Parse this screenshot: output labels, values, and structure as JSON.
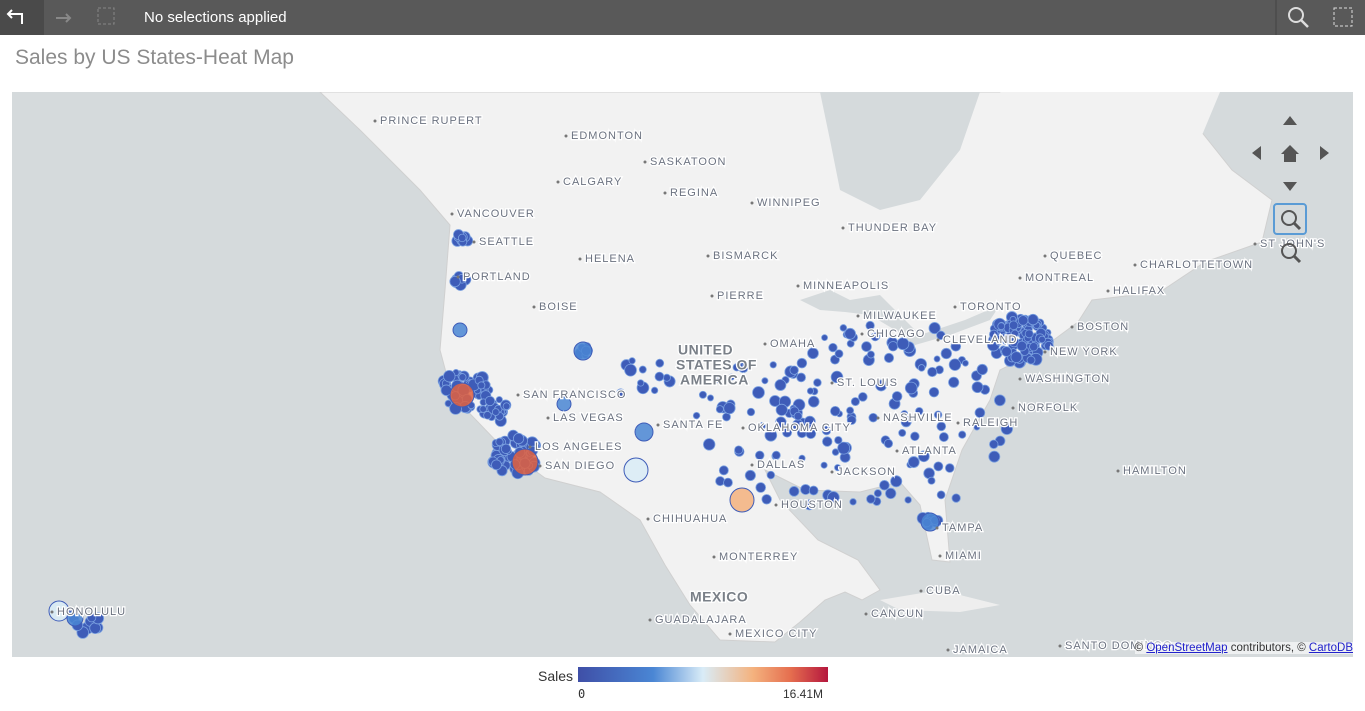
{
  "toolbar": {
    "selections": "No selections applied"
  },
  "title": "Sales by US States-Heat Map",
  "map": {
    "labels": [
      "PRINCE RUPERT",
      "EDMONTON",
      "SASKATOON",
      "CALGARY",
      "REGINA",
      "WINNIPEG",
      "VANCOUVER",
      "SEATTLE",
      "THUNDER BAY",
      "QUEBEC",
      "ST JOHN'S",
      "CHARLOTTETOWN",
      "BISMARCK",
      "HELENA",
      "PORTLAND",
      "MONTREAL",
      "HALIFAX",
      "MINNEAPOLIS",
      "PIERRE",
      "BOISE",
      "MILWAUKEE",
      "TORONTO",
      "BOSTON",
      "OMAHA",
      "CLEVELAND",
      "NEW YORK",
      "CHICAGO",
      "SAN FRANCISCO",
      "ST. LOUIS",
      "WASHINGTON",
      "LAS VEGAS",
      "NASHVILLE",
      "NORFOLK",
      "SANTA FE",
      "OKLAHOMA CITY",
      "RALEIGH",
      "LOS ANGELES",
      "ATLANTA",
      "SAN DIEGO",
      "DALLAS",
      "JACKSON",
      "HAMILTON",
      "HOUSTON",
      "CHIHUAHUA",
      "TAMPA",
      "MONTERREY",
      "MIAMI",
      "CUBA",
      "GUADALAJARA",
      "CANCUN",
      "MEXICO CITY",
      "HONOLULU",
      "SANTO DOMINGO",
      "JAMAICA"
    ],
    "countries": [
      "UNITED",
      "STATES OF",
      "AMERICA",
      "MEXICO"
    ],
    "attribution": {
      "prefix": "©",
      "osm": "OpenStreetMap",
      "middle": "contributors, ©",
      "carto": "CartoDB"
    }
  },
  "legend": {
    "title": "Sales",
    "min_label": "0",
    "max_label": "16.41M"
  }
}
